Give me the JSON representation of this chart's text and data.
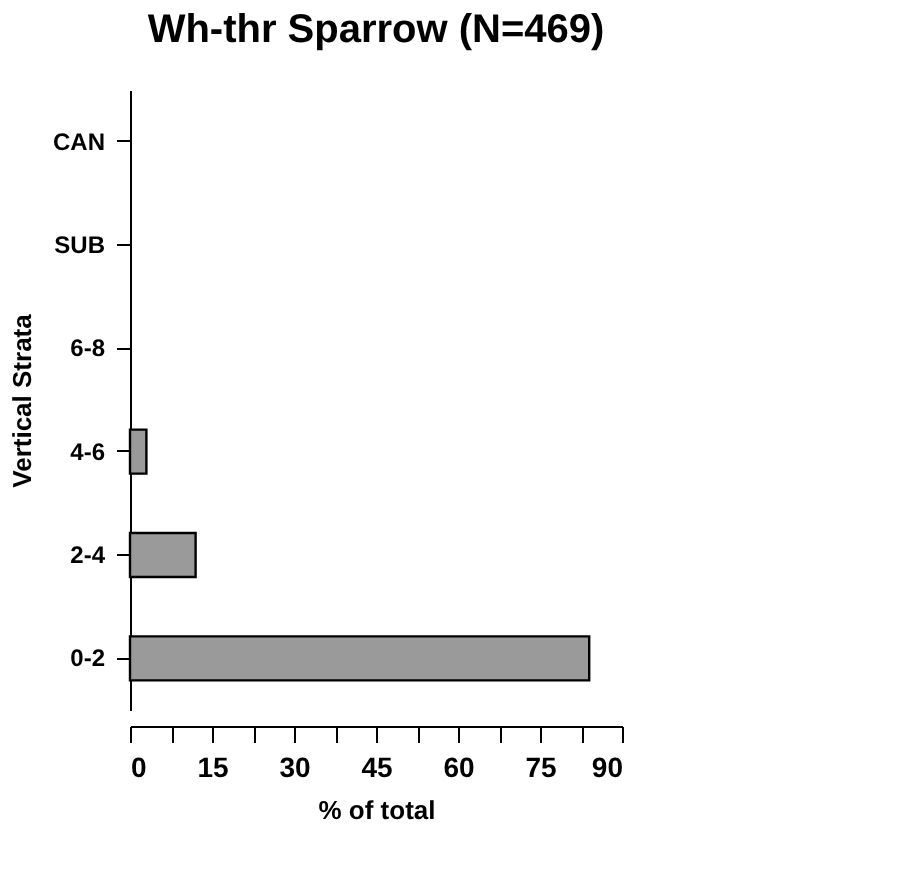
{
  "chart_data": {
    "type": "bar",
    "orientation": "horizontal",
    "title": "Wh-thr Sparrow (N=469)",
    "xlabel": "% of total",
    "ylabel": "Vertical Strata",
    "categories": [
      "CAN",
      "SUB",
      "6-8",
      "4-6",
      "2-4",
      "0-2"
    ],
    "values": [
      null,
      null,
      null,
      3,
      12,
      84
    ],
    "color": "#9a9a9a",
    "xlim": [
      0,
      90
    ],
    "xticks": [
      0,
      {
        "value": 7.5,
        "label": null
      },
      15,
      {
        "value": 22.5,
        "label": null
      },
      30,
      {
        "value": 37.5,
        "label": null
      },
      45,
      {
        "value": 52.5,
        "label": null
      },
      60,
      {
        "value": 67.5,
        "label": null
      },
      75,
      {
        "value": 82.5,
        "label": null
      },
      90
    ],
    "grid": false
  }
}
